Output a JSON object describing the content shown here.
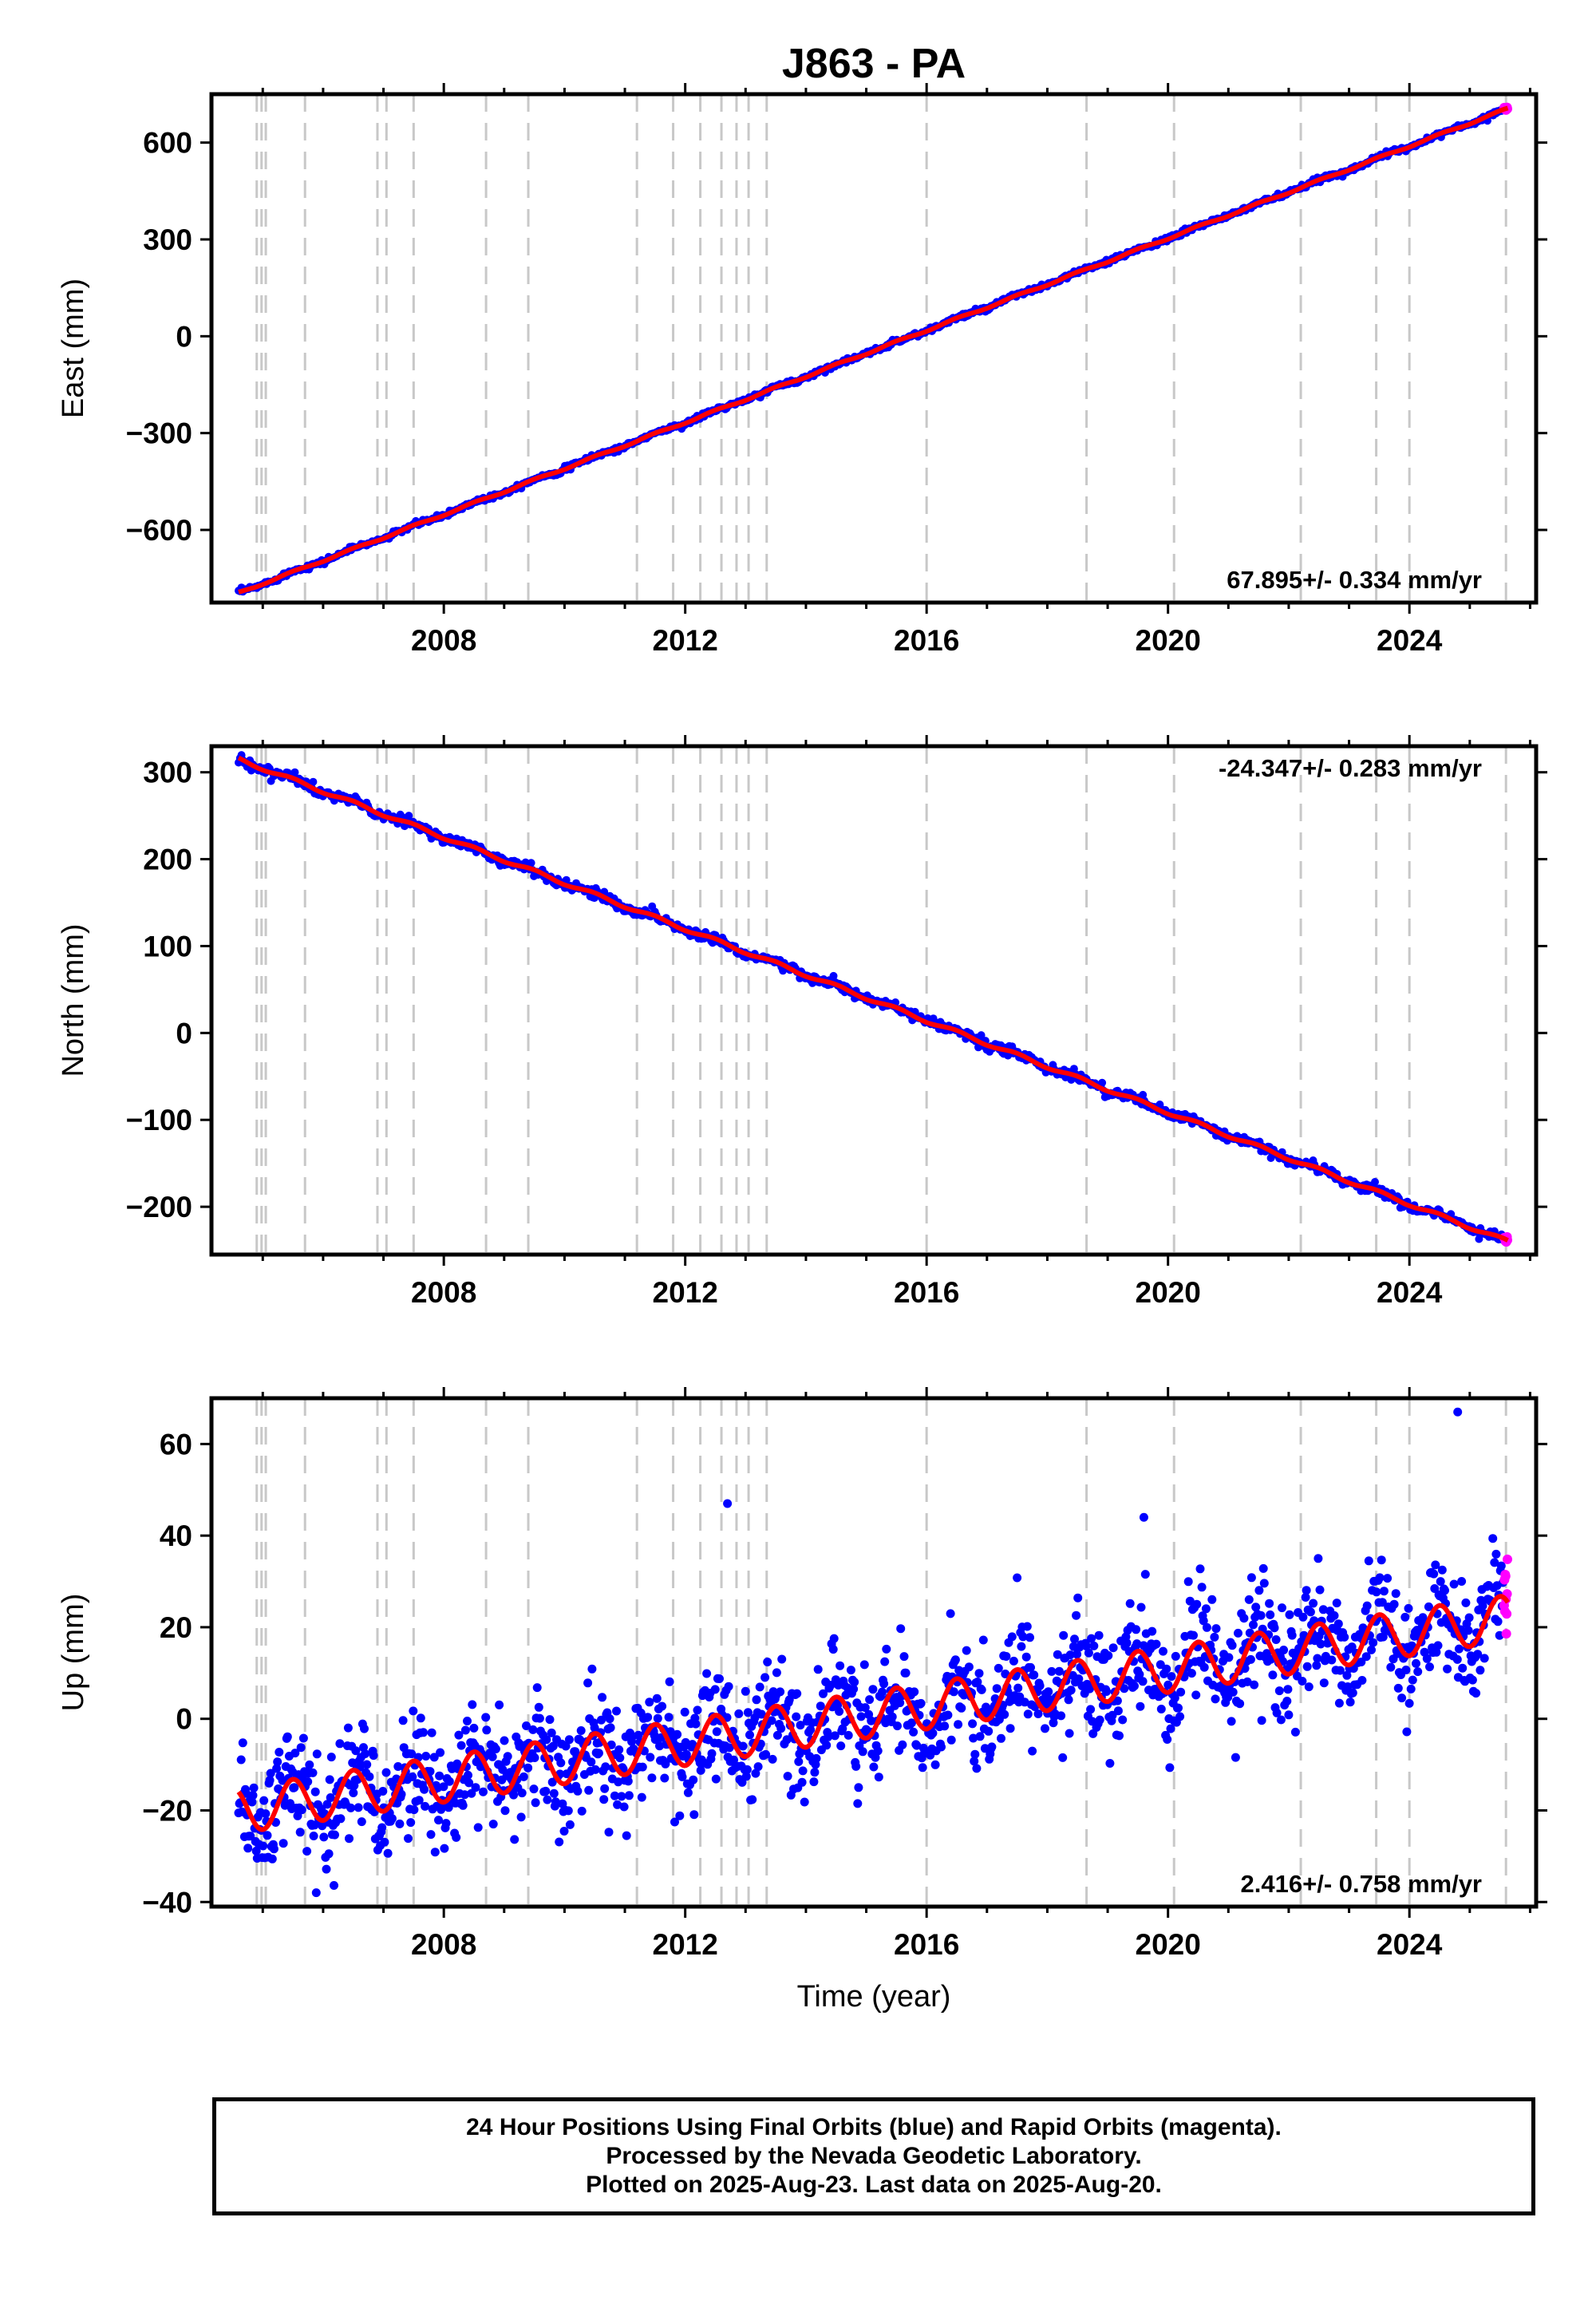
{
  "chart_title": "J863 - PA",
  "x_axis_label": "Time (year)",
  "footer": {
    "line1": "24 Hour Positions Using Final Orbits (blue) and Rapid Orbits (magenta).",
    "line2": "Processed by the Nevada Geodetic Laboratory.",
    "line3": "Plotted on 2025-Aug-23. Last data on 2025-Aug-20."
  },
  "colors": {
    "final_orbits": "#0000ff",
    "rapid_orbits": "#ff00ff",
    "model_fit": "#ff0000",
    "event_lines": "#c8c8c8"
  },
  "chart_data": [
    {
      "type": "scatter",
      "name": "East",
      "ylabel": "East (mm)",
      "xlim": [
        2004.15,
        2026.1
      ],
      "ylim": [
        -825,
        750
      ],
      "yticks": [
        600,
        300,
        0,
        -300,
        -600
      ],
      "ytick_labels": [
        "600",
        "300",
        "0",
        "−300",
        "−600"
      ],
      "xticks": [
        2008,
        2012,
        2016,
        2020,
        2024
      ],
      "xtick_labels": [
        "2008",
        "2012",
        "2016",
        "2020",
        "2024"
      ],
      "rate_label": "67.895+/- 0.334 mm/yr",
      "rate_position": "bottom-right",
      "start_year": 2004.6,
      "end_year": 2025.63,
      "start_value": -795,
      "end_value": 705,
      "seasonal_amplitude": 3,
      "scatter_noise": 4
    },
    {
      "type": "scatter",
      "name": "North",
      "ylabel": "North (mm)",
      "xlim": [
        2004.15,
        2026.1
      ],
      "ylim": [
        -255,
        330
      ],
      "yticks": [
        300,
        200,
        100,
        0,
        -100,
        -200
      ],
      "ytick_labels": [
        "300",
        "200",
        "100",
        "0",
        "−100",
        "−200"
      ],
      "xticks": [
        2008,
        2012,
        2016,
        2020,
        2024
      ],
      "xtick_labels": [
        "2008",
        "2012",
        "2016",
        "2020",
        "2024"
      ],
      "rate_label": "-24.347+/- 0.283 mm/yr",
      "rate_position": "top-right",
      "start_year": 2004.6,
      "end_year": 2025.63,
      "start_value": 315,
      "end_value": -240,
      "seasonal_amplitude": 2,
      "scatter_noise": 3
    },
    {
      "type": "scatter",
      "name": "Up",
      "ylabel": "Up (mm)",
      "xlim": [
        2004.15,
        2026.1
      ],
      "ylim": [
        -41,
        70
      ],
      "yticks": [
        60,
        40,
        20,
        0,
        -20,
        -40
      ],
      "ytick_labels": [
        "60",
        "40",
        "20",
        "0",
        "−20",
        "−40"
      ],
      "xticks": [
        2008,
        2012,
        2016,
        2020,
        2024
      ],
      "xtick_labels": [
        "2008",
        "2012",
        "2016",
        "2020",
        "2024"
      ],
      "rate_label": "2.416+/- 0.758 mm/yr",
      "rate_position": "bottom-right",
      "start_year": 2004.6,
      "end_year": 2025.63,
      "start_value": -20,
      "end_value": 22,
      "seasonal_amplitude": 5,
      "scatter_noise": 6,
      "outliers": [
        [
          2012.7,
          47
        ],
        [
          2024.8,
          67
        ],
        [
          2019.6,
          44
        ]
      ]
    }
  ],
  "event_lines_years": [
    2004.9,
    2004.98,
    2005.05,
    2005.7,
    2006.9,
    2007.05,
    2007.5,
    2008.7,
    2009.4,
    2011.2,
    2011.8,
    2012.25,
    2012.6,
    2012.85,
    2013.05,
    2013.35,
    2016.0,
    2018.65,
    2020.1,
    2022.2,
    2023.45,
    2024.0,
    2025.6
  ]
}
